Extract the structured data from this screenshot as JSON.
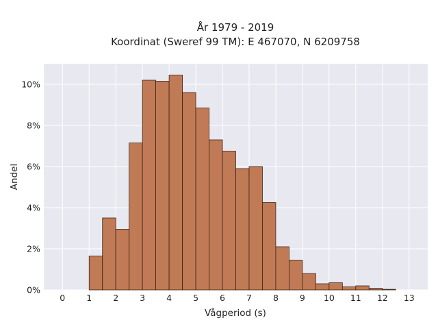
{
  "chart_data": {
    "type": "bar",
    "title_line1": "År 1979 - 2019",
    "title_line2": "Koordinat (Sweref 99 TM): E 467070, N 6209758",
    "xlabel": "Vågperiod (s)",
    "ylabel": "Andel",
    "bin_width": 0.5,
    "bin_starts": [
      1.0,
      1.5,
      2.0,
      2.5,
      3.0,
      3.5,
      4.0,
      4.5,
      5.0,
      5.5,
      6.0,
      6.5,
      7.0,
      7.5,
      8.0,
      8.5,
      9.0,
      9.5,
      10.0,
      10.5,
      11.0,
      11.5,
      12.0,
      12.5
    ],
    "values": [
      1.65,
      3.5,
      2.95,
      7.15,
      10.2,
      10.15,
      10.45,
      9.6,
      8.85,
      7.3,
      6.75,
      5.9,
      6.0,
      4.25,
      2.1,
      1.45,
      0.8,
      0.3,
      0.35,
      0.15,
      0.2,
      0.08,
      0.03,
      0.0
    ],
    "xlim": [
      -0.7,
      13.7
    ],
    "ylim": [
      0,
      11
    ],
    "x_ticks": [
      0,
      1,
      2,
      3,
      4,
      5,
      6,
      7,
      8,
      9,
      10,
      11,
      12,
      13
    ],
    "x_tick_labels": [
      "0",
      "1",
      "2",
      "3",
      "4",
      "5",
      "6",
      "7",
      "8",
      "9",
      "10",
      "11",
      "12",
      "13"
    ],
    "y_ticks": [
      0,
      2,
      4,
      6,
      8,
      10
    ],
    "y_tick_labels": [
      "0%",
      "2%",
      "4%",
      "6%",
      "8%",
      "10%"
    ],
    "grid": true,
    "colors": {
      "bar_fill": "#c07a55",
      "bar_stroke": "#3a2416",
      "plot_bg": "#e8e8f0",
      "grid": "#ffffff"
    }
  }
}
